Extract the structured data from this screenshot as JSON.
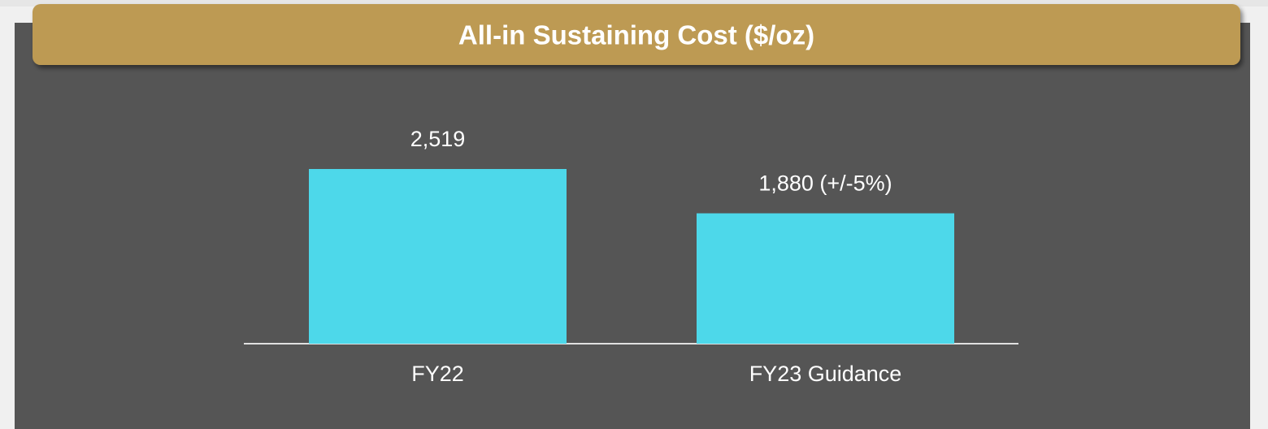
{
  "chart_data": {
    "type": "bar",
    "title": "All-in Sustaining Cost ($/oz)",
    "categories": [
      "FY22",
      "FY23 Guidance"
    ],
    "values": [
      2519,
      1880
    ],
    "value_labels": [
      "2,519",
      "1,880 (+/-5%)"
    ],
    "color": "#4dd8ea"
  }
}
